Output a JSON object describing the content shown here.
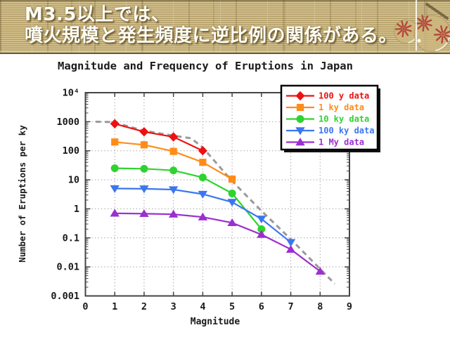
{
  "slide": {
    "title_lines": [
      "M3.5以上では、",
      "噴火規模と発生頻度に逆比例の関係がある。"
    ],
    "colors": {
      "band_base": "#c8b27b",
      "band_light": "#d8c794",
      "band_dark": "#b29d69",
      "title_text": "#fdfdf6"
    },
    "decoration": {
      "name": "temari-ball-ornament",
      "petal_color": "#b3483a",
      "ball_color": "#cdb77f"
    }
  },
  "chart_data": {
    "type": "line",
    "title": "Magnitude and Frequency of Eruptions in Japan",
    "xlabel": "Magnitude",
    "ylabel": "Number of Eruptions per ky",
    "x_scale": "linear",
    "y_scale": "log",
    "xlim": [
      0,
      9
    ],
    "ylim": [
      0.001,
      10000
    ],
    "grid": true,
    "legend_position": "top-right",
    "x_ticks": [
      0,
      1,
      2,
      3,
      4,
      5,
      6,
      7,
      8,
      9
    ],
    "y_ticks": [
      {
        "label": "10⁴",
        "v": 10000
      },
      {
        "label": "1000",
        "v": 1000
      },
      {
        "label": "100",
        "v": 100
      },
      {
        "label": "10",
        "v": 10
      },
      {
        "label": "1",
        "v": 1
      },
      {
        "label": "0.1",
        "v": 0.1
      },
      {
        "label": "0.01",
        "v": 0.01
      },
      {
        "label": "0.001",
        "v": 0.001
      }
    ],
    "series": [
      {
        "name": "100 y data",
        "color": "#ee1111",
        "marker": "diamond",
        "x": [
          1,
          2,
          3,
          4
        ],
        "y": [
          850,
          450,
          300,
          100
        ]
      },
      {
        "name": "1 ky data",
        "color": "#ff8c19",
        "marker": "square",
        "x": [
          1,
          2,
          3,
          4,
          5
        ],
        "y": [
          200,
          160,
          95,
          40,
          10.5
        ]
      },
      {
        "name": "10 ky data",
        "color": "#2fd32f",
        "marker": "circle",
        "x": [
          1,
          2,
          3,
          4,
          5,
          6
        ],
        "y": [
          25,
          24,
          21,
          12,
          3.4,
          0.2
        ]
      },
      {
        "name": "100 ky data",
        "color": "#3b76f0",
        "marker": "triangle-down",
        "x": [
          1,
          2,
          3,
          4,
          5,
          6,
          7
        ],
        "y": [
          5,
          4.9,
          4.6,
          3.2,
          1.7,
          0.45,
          0.07
        ]
      },
      {
        "name": "1 My data",
        "color": "#9b2fd0",
        "marker": "triangle-up",
        "x": [
          1,
          2,
          3,
          4,
          5,
          6,
          7,
          8
        ],
        "y": [
          0.7,
          0.68,
          0.65,
          0.52,
          0.33,
          0.13,
          0.04,
          0.007
        ]
      }
    ],
    "trend_line": {
      "style": "dashed",
      "color": "#9a9a9a",
      "points": [
        [
          0.35,
          1000
        ],
        [
          0.8,
          980
        ],
        [
          1,
          930
        ],
        [
          2,
          490
        ],
        [
          3,
          330
        ],
        [
          3.6,
          270
        ],
        [
          4,
          130
        ],
        [
          5,
          9
        ],
        [
          6,
          0.85
        ],
        [
          7,
          0.09
        ],
        [
          8,
          0.0085
        ],
        [
          8.5,
          0.0026
        ]
      ]
    }
  }
}
